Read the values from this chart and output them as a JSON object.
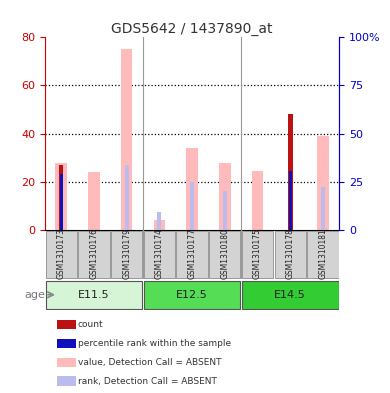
{
  "title": "GDS5642 / 1437890_at",
  "samples": [
    "GSM1310173",
    "GSM1310176",
    "GSM1310179",
    "GSM1310174",
    "GSM1310177",
    "GSM1310180",
    "GSM1310175",
    "GSM1310178",
    "GSM1310181"
  ],
  "age_groups": [
    {
      "label": "E11.5",
      "start": 0,
      "end": 3,
      "color": "#d6f5d6"
    },
    {
      "label": "E12.5",
      "start": 3,
      "end": 6,
      "color": "#55dd55"
    },
    {
      "label": "E14.5",
      "start": 6,
      "end": 9,
      "color": "#33cc33"
    }
  ],
  "value_absent": [
    28.0,
    24.0,
    75.0,
    4.0,
    34.0,
    28.0,
    24.5,
    null,
    39.0
  ],
  "rank_absent": [
    null,
    null,
    33.5,
    9.5,
    25.0,
    20.0,
    null,
    null,
    22.5
  ],
  "count": [
    27.0,
    null,
    null,
    null,
    null,
    null,
    null,
    48.0,
    null
  ],
  "percentile": [
    29.0,
    null,
    null,
    null,
    null,
    null,
    null,
    30.5,
    null
  ],
  "left_ylim": [
    0,
    80
  ],
  "right_ylim": [
    0,
    100
  ],
  "left_yticks": [
    0,
    20,
    40,
    60,
    80
  ],
  "right_yticks": [
    0,
    25,
    50,
    75,
    100
  ],
  "right_yticklabels": [
    "0",
    "25",
    "50",
    "75",
    "100%"
  ],
  "color_count": "#bb1111",
  "color_percentile": "#1111bb",
  "color_value_absent": "#ffbbbb",
  "color_rank_absent": "#bbbbee",
  "bg_color": "#ffffff",
  "left_axis_color": "#cc0000",
  "right_axis_color": "#0000cc",
  "label_box_color": "#d3d3d3",
  "label_box_edge": "#999999",
  "divider_color": "#999999"
}
